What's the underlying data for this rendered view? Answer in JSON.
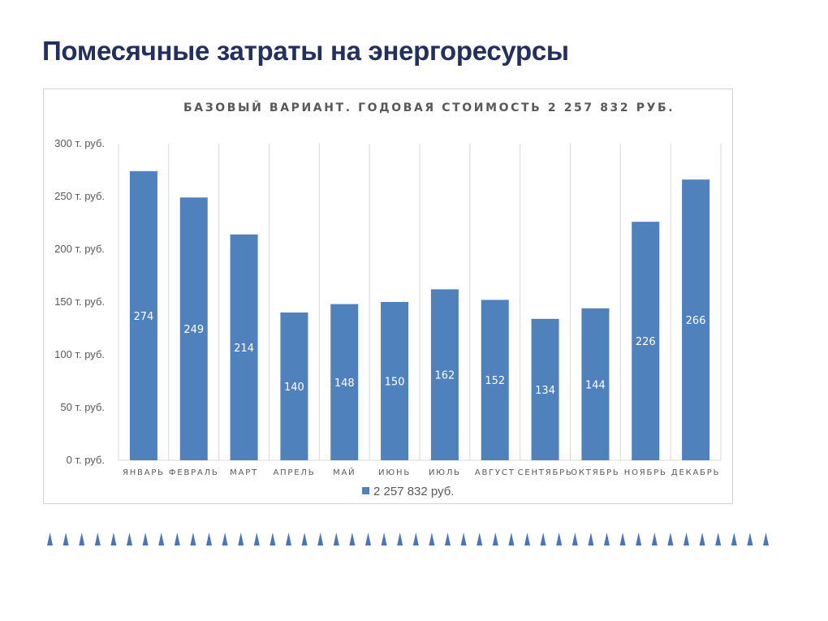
{
  "page": {
    "title": "Помесячные затраты на энергоресурсы"
  },
  "colors": {
    "bar": "#4f81bd",
    "title": "#23305e",
    "decor": "#4a75b8"
  },
  "chart_data": {
    "type": "bar",
    "title": "БАЗОВЫЙ ВАРИАНТ. ГОДОВАЯ СТОИМОСТЬ  2 257 832 РУБ.",
    "categories": [
      "ЯНВАРЬ",
      "ФЕВРАЛЬ",
      "МАРТ",
      "АПРЕЛЬ",
      "МАЙ",
      "ИЮНЬ",
      "ИЮЛЬ",
      "АВГУСТ",
      "СЕНТЯБРЬ",
      "ОКТЯБРЬ",
      "НОЯБРЬ",
      "ДЕКАБРЬ"
    ],
    "series": [
      {
        "name": "2 257 832 руб.",
        "values": [
          274,
          249,
          214,
          140,
          148,
          150,
          162,
          152,
          134,
          144,
          226,
          266
        ],
        "labels": [
          "274",
          "249",
          "214",
          "140",
          "148",
          "150",
          "162",
          "152",
          "134",
          "144",
          "226",
          "266"
        ]
      }
    ],
    "yticks": [
      0,
      50,
      100,
      150,
      200,
      250,
      300
    ],
    "ytick_labels": [
      "0 т. руб.",
      "50 т. руб.",
      "100 т. руб.",
      "150 т. руб.",
      "200 т. руб.",
      "250 т. руб.",
      "300 т. руб."
    ],
    "ylim": [
      0,
      300
    ],
    "xlabel": "",
    "ylabel": "",
    "grid": "vertical",
    "legend": "bottom"
  }
}
